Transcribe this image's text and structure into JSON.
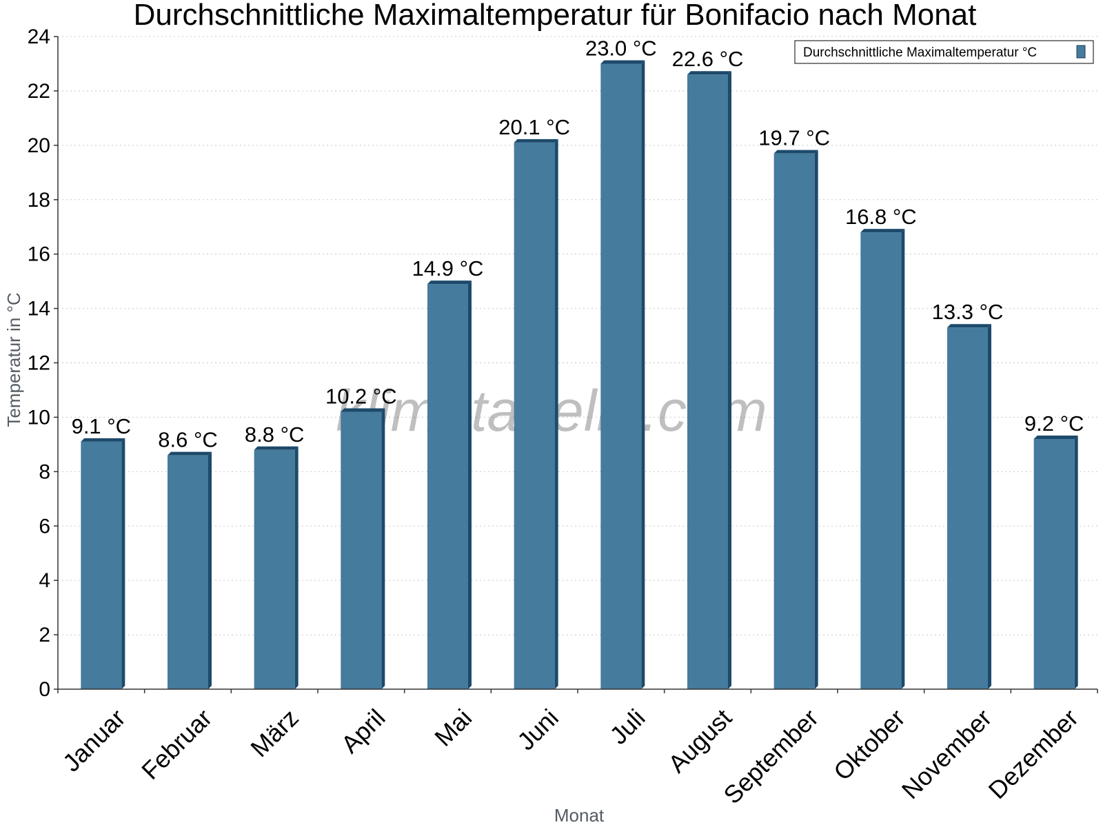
{
  "chart_data": {
    "type": "bar",
    "title": "Durchschnittliche Maximaltemperatur für Bonifacio nach Monat",
    "xlabel": "Monat",
    "ylabel": "Temperatur in °C",
    "categories": [
      "Januar",
      "Februar",
      "März",
      "April",
      "Mai",
      "Juni",
      "Juli",
      "August",
      "September",
      "Oktober",
      "November",
      "Dezember"
    ],
    "series": [
      {
        "name": "Durchschnittliche Maximaltemperatur °C",
        "values": [
          9.1,
          8.6,
          8.8,
          10.2,
          14.9,
          20.1,
          23.0,
          22.6,
          19.7,
          16.8,
          13.3,
          9.2
        ],
        "labels": [
          "9.1 °C",
          "8.6 °C",
          "8.8 °C",
          "10.2 °C",
          "14.9 °C",
          "20.1 °C",
          "23.0 °C",
          "22.6 °C",
          "19.7 °C",
          "16.8 °C",
          "13.3 °C",
          "9.2 °C"
        ],
        "color": "#457b9d"
      }
    ],
    "ylim": [
      0,
      24
    ],
    "yticks": [
      "0",
      "2",
      "4",
      "6",
      "8",
      "10",
      "12",
      "14",
      "16",
      "18",
      "20",
      "22",
      "24"
    ],
    "grid": true,
    "legend_position": "top-right",
    "watermark": "klimatabelle.com"
  }
}
